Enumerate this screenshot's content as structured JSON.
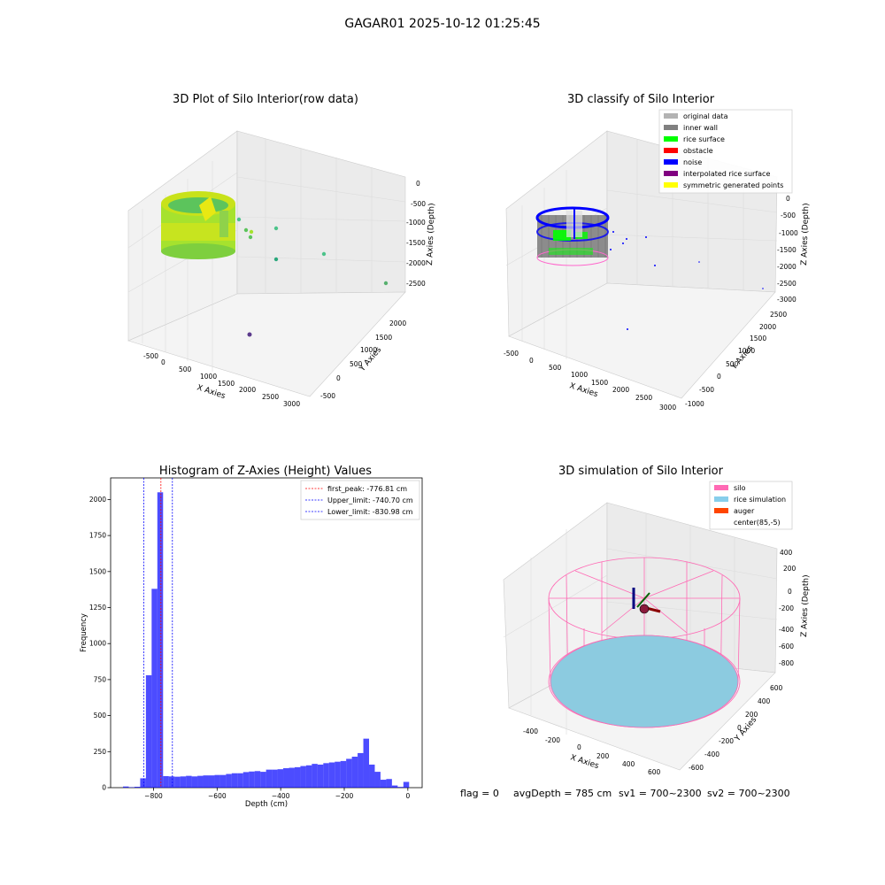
{
  "figure_title": "GAGAR01 2025-10-12 01:25:45",
  "footer": {
    "flag": "flag = 0",
    "avgdepth": "avgDepth = 785 cm",
    "sv1": "sv1 = 700~2300",
    "sv2": "sv2 = 700~2300"
  },
  "panels": {
    "raw": {
      "title": "3D Plot of Silo Interior(row data)",
      "xlabel": "X Axies",
      "ylabel": "Y Axies",
      "zlabel": "Z Axies (Depth)",
      "xticks": [
        "-500",
        "0",
        "500",
        "1000",
        "1500",
        "2000",
        "2500",
        "3000"
      ],
      "yticks": [
        "-500",
        "0",
        "500",
        "1000",
        "1500",
        "2000"
      ],
      "zticks": [
        "0",
        "-500",
        "-1000",
        "-1500",
        "-2000",
        "-2500"
      ]
    },
    "classify": {
      "title": "3D classify of Silo Interior",
      "xlabel": "X Axies",
      "ylabel": "Y Axies",
      "zlabel": "Z Axies (Depth)",
      "xticks": [
        "-500",
        "0",
        "500",
        "1000",
        "1500",
        "2000",
        "2500",
        "3000"
      ],
      "yticks": [
        "-1000",
        "-500",
        "0",
        "500",
        "1000",
        "1500",
        "2000",
        "2500"
      ],
      "zticks": [
        "0",
        "-500",
        "-1000",
        "-1500",
        "-2000",
        "-2500",
        "-3000"
      ],
      "legend": [
        {
          "label": "original data",
          "color": "#b3b3b3"
        },
        {
          "label": "inner wall",
          "color": "#808080"
        },
        {
          "label": "rice surface",
          "color": "#00ff00"
        },
        {
          "label": "obstacle",
          "color": "#ff0000"
        },
        {
          "label": "noise",
          "color": "#0000ff"
        },
        {
          "label": "interpolated rice surface",
          "color": "#800080"
        },
        {
          "label": "symmetric generated points",
          "color": "#ffff00"
        }
      ]
    },
    "simulation": {
      "title": "3D simulation of Silo Interior",
      "xlabel": "X Axies",
      "ylabel": "Y Axies",
      "zlabel": "Z Axies (Depth)",
      "xticks": [
        "-400",
        "-200",
        "0",
        "200",
        "400",
        "600"
      ],
      "yticks": [
        "-600",
        "-400",
        "-200",
        "0",
        "200",
        "400",
        "600"
      ],
      "zticks": [
        "400",
        "200",
        "0",
        "-200",
        "-400",
        "-600",
        "-800"
      ],
      "legend": [
        {
          "label": "silo",
          "color": "#ff69b4"
        },
        {
          "label": "rice simulation",
          "color": "#87ceeb"
        },
        {
          "label": "auger",
          "color": "#ff4500"
        },
        {
          "label": "center(85,-5)",
          "color": "#ffffff"
        }
      ]
    }
  },
  "chart_data": {
    "type": "bar",
    "title": "Histogram of Z-Axies (Height) Values",
    "xlabel": "Depth (cm)",
    "ylabel": "Frequency",
    "xlim": [
      -935,
      45
    ],
    "ylim": [
      0,
      2150
    ],
    "xticks": [
      -800,
      -600,
      -400,
      -200,
      0
    ],
    "yticks": [
      0,
      250,
      500,
      750,
      1000,
      1250,
      1500,
      1750,
      2000
    ],
    "bar_color": "#0000ff",
    "bin_width": 18,
    "bins": [
      {
        "x": -887,
        "value": 8
      },
      {
        "x": -869,
        "value": 3
      },
      {
        "x": -851,
        "value": 6
      },
      {
        "x": -833,
        "value": 65
      },
      {
        "x": -815,
        "value": 780
      },
      {
        "x": -797,
        "value": 1380
      },
      {
        "x": -779,
        "value": 2050
      },
      {
        "x": -761,
        "value": 80
      },
      {
        "x": -743,
        "value": 78
      },
      {
        "x": -725,
        "value": 76
      },
      {
        "x": -707,
        "value": 78
      },
      {
        "x": -689,
        "value": 82
      },
      {
        "x": -671,
        "value": 78
      },
      {
        "x": -653,
        "value": 82
      },
      {
        "x": -635,
        "value": 85
      },
      {
        "x": -617,
        "value": 85
      },
      {
        "x": -599,
        "value": 88
      },
      {
        "x": -581,
        "value": 88
      },
      {
        "x": -563,
        "value": 95
      },
      {
        "x": -545,
        "value": 100
      },
      {
        "x": -527,
        "value": 100
      },
      {
        "x": -509,
        "value": 108
      },
      {
        "x": -491,
        "value": 112
      },
      {
        "x": -473,
        "value": 115
      },
      {
        "x": -455,
        "value": 110
      },
      {
        "x": -437,
        "value": 125
      },
      {
        "x": -419,
        "value": 125
      },
      {
        "x": -401,
        "value": 128
      },
      {
        "x": -383,
        "value": 135
      },
      {
        "x": -365,
        "value": 138
      },
      {
        "x": -347,
        "value": 142
      },
      {
        "x": -329,
        "value": 150
      },
      {
        "x": -311,
        "value": 155
      },
      {
        "x": -293,
        "value": 165
      },
      {
        "x": -275,
        "value": 160
      },
      {
        "x": -257,
        "value": 170
      },
      {
        "x": -239,
        "value": 175
      },
      {
        "x": -221,
        "value": 180
      },
      {
        "x": -203,
        "value": 185
      },
      {
        "x": -185,
        "value": 200
      },
      {
        "x": -167,
        "value": 215
      },
      {
        "x": -149,
        "value": 240
      },
      {
        "x": -131,
        "value": 340
      },
      {
        "x": -113,
        "value": 160
      },
      {
        "x": -95,
        "value": 110
      },
      {
        "x": -77,
        "value": 55
      },
      {
        "x": -59,
        "value": 60
      },
      {
        "x": -41,
        "value": 15
      },
      {
        "x": -23,
        "value": 5
      },
      {
        "x": -5,
        "value": 40
      }
    ],
    "vlines": [
      {
        "x": -776.81,
        "label": "first_peak: -776.81 cm",
        "color": "#ff0000"
      },
      {
        "x": -740.7,
        "label": "Upper_limit: -740.70 cm",
        "color": "#0000ff"
      },
      {
        "x": -830.98,
        "label": "Lower_limit: -830.98 cm",
        "color": "#0000ff"
      }
    ],
    "legend_position": "top-right"
  }
}
